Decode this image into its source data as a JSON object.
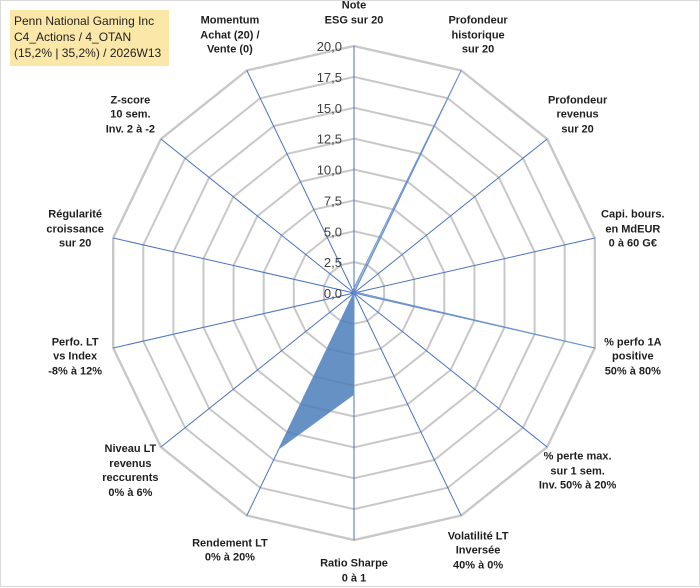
{
  "title": {
    "line1": "Penn National Gaming Inc",
    "line2": "C4_Actions / 4_OTAN",
    "line3": "(15,2% | 35,2%) / 2026W13"
  },
  "chart_data": {
    "type": "radar",
    "axes": [
      "Note\nESG sur 20",
      "Profondeur\nhistorique\nsur 20",
      "Profondeur\nrevenus\nsur 20",
      "Capi. bours.\nen MdEUR\n0 à 60 G€",
      "% perfo 1A\npositive\n50% à 80%",
      "% perte max.\nsur 1 sem.\nInv. 50% à 20%",
      "Volatilité LT\nInversée\n40% à 0%",
      "Ratio Sharpe\n0 à 1",
      "Rendement LT\n0% à 20%",
      "Niveau LT\nrevenus\nreccurents\n0% à 6%",
      "Perfo. LT\nvs Index\n-8% à 12%",
      "Régularité\ncroissance\nsur 20",
      "Z-score\n10 sem.\nInv. 2 à -2",
      "Momentum\nAchat (20) /\nVente (0)"
    ],
    "ticks": [
      "0,0",
      "2,5",
      "5,0",
      "7,5",
      "10,0",
      "12,5",
      "15,0",
      "17,5",
      "20,0"
    ],
    "rmin": 0,
    "rmax": 20,
    "series": [
      {
        "values": [
          0,
          0,
          0,
          0,
          0,
          0,
          0,
          8.2,
          14.0,
          0,
          0,
          0,
          0,
          0
        ],
        "color": "#4a7ebb"
      }
    ],
    "spokes": [
      {
        "from": 13,
        "to": 1,
        "value": 20
      },
      {
        "from": 3,
        "to": 4,
        "value": 20
      }
    ],
    "grid": true,
    "legend": "none"
  }
}
